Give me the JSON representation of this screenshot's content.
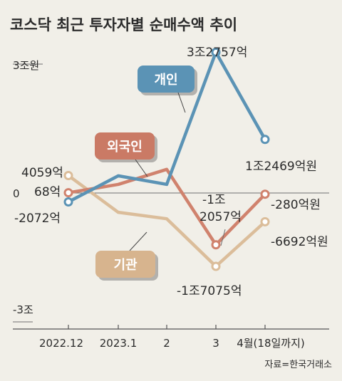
{
  "chart_data": {
    "type": "line",
    "title": "코스닥 최근 투자자별 순매수액 추이",
    "source": "자료=한국거래소",
    "categories": [
      "2022.12",
      "2023.1",
      "2",
      "3",
      "4월(18일까지)"
    ],
    "ylim": [
      -3,
      3
    ],
    "yticks": [
      {
        "value": 3,
        "label": "3조원"
      },
      {
        "value": 0,
        "label": "0"
      },
      {
        "value": -3,
        "label": "-3조"
      }
    ],
    "grid": false,
    "series": [
      {
        "name": "개인",
        "color": "#5b93b5",
        "badge_color": "#5b93b5",
        "values": [
          -0.2072,
          0.4,
          0.2,
          3.2757,
          1.2469
        ],
        "labels": [
          "-2072억",
          "",
          "",
          "3조2757억",
          "1조2469억원"
        ]
      },
      {
        "name": "외국인",
        "color": "#d0826d",
        "badge_color": "#ca7a65",
        "values": [
          0.0068,
          0.2,
          0.55,
          -1.2057,
          -0.028
        ],
        "labels": [
          "68억",
          "",
          "",
          "-1조\n2057억",
          "-280억원"
        ]
      },
      {
        "name": "기관",
        "color": "#dbbd9a",
        "badge_color": "#d7b48e",
        "values": [
          0.4059,
          -0.45,
          -0.6,
          -1.7075,
          -0.6692
        ],
        "labels": [
          "4059억",
          "",
          "",
          "-1조7075억",
          "-6692억원"
        ]
      }
    ]
  }
}
